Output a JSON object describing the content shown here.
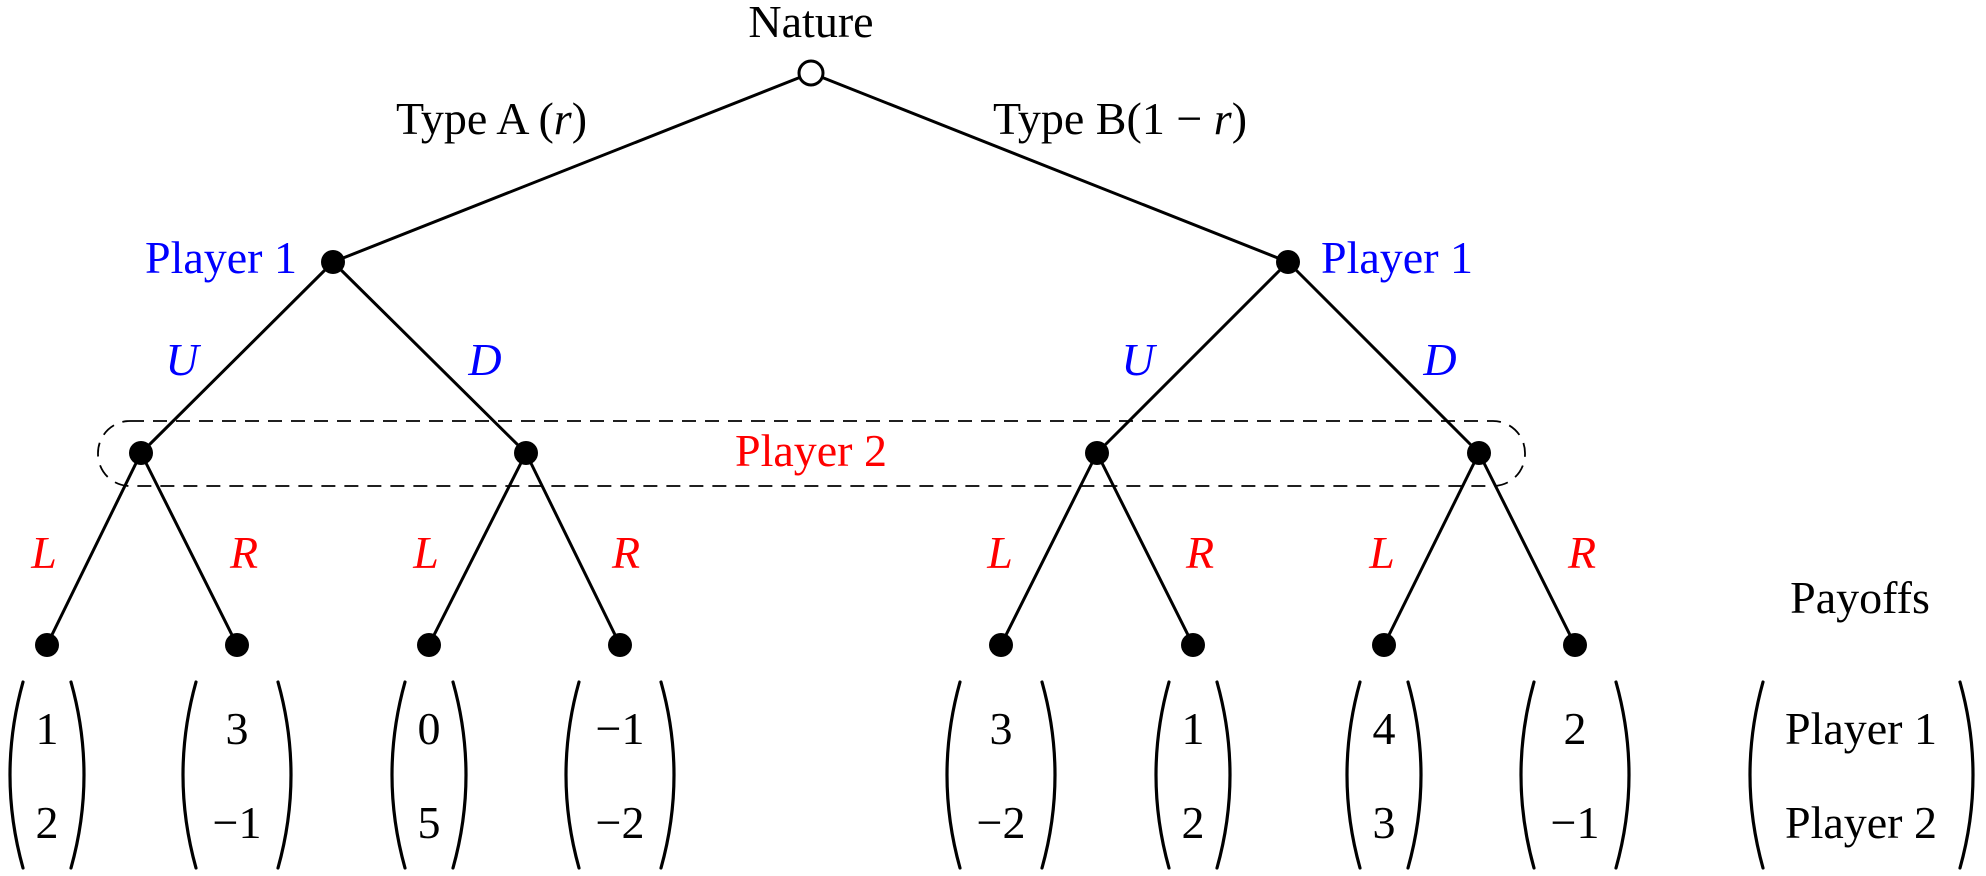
{
  "colors": {
    "player1": "#0000ff",
    "player2": "#ff0000",
    "text": "#000000"
  },
  "nature": {
    "label": "Nature"
  },
  "branches": {
    "left": {
      "label": "Type A",
      "prob": "r"
    },
    "right": {
      "label": "Type B",
      "prob_open": "(1 ",
      "prob_minus": "−",
      "prob_var": " r",
      "prob_close": ")"
    }
  },
  "player1": {
    "left_label": "Player 1",
    "right_label": "Player 1"
  },
  "actions_p1": [
    "U",
    "D",
    "U",
    "D"
  ],
  "player2": {
    "label": "Player 2"
  },
  "actions_p2": [
    "L",
    "R",
    "L",
    "R",
    "L",
    "R",
    "L",
    "R"
  ],
  "payoffs": [
    {
      "p1": "1",
      "p2": "2"
    },
    {
      "p1": "3",
      "p2": "−1"
    },
    {
      "p1": "0",
      "p2": "5"
    },
    {
      "p1": "−1",
      "p2": "−2"
    },
    {
      "p1": "3",
      "p2": "−2"
    },
    {
      "p1": "1",
      "p2": "2"
    },
    {
      "p1": "4",
      "p2": "3"
    },
    {
      "p1": "2",
      "p2": "−1"
    }
  ],
  "legend": {
    "title": "Payoffs",
    "row1": "Player 1",
    "row2": "Player 2"
  }
}
